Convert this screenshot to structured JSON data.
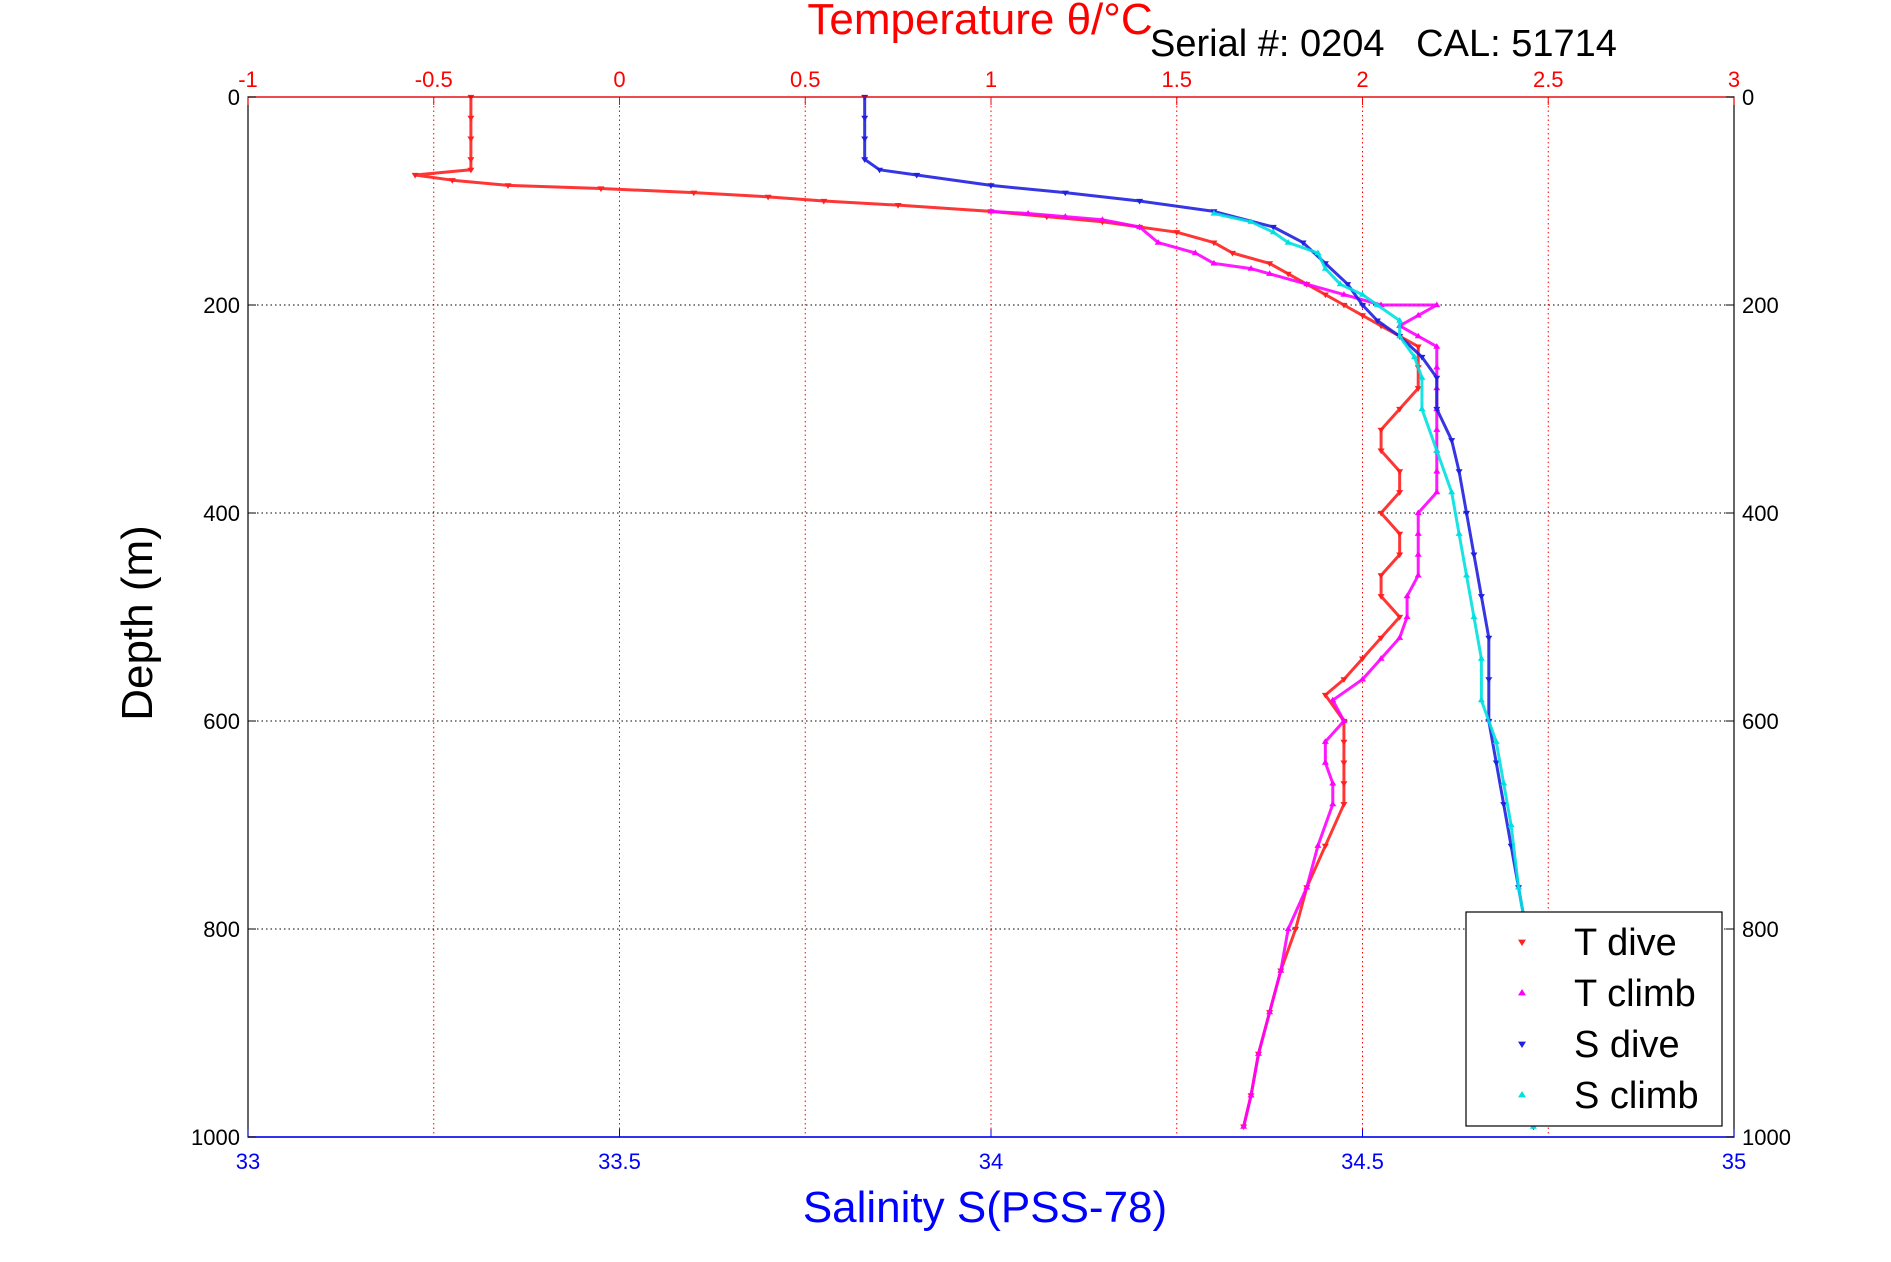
{
  "chart_data": {
    "type": "scatter",
    "title": "Temperature θ/°C",
    "annotation": "Serial #: 0204   CAL: 51714",
    "ylabel": "Depth (m)",
    "x_bottom_label": "Salinity S(PSS-78)",
    "x_top_label": "Temperature θ/°C",
    "ylim": [
      0,
      1000
    ],
    "y_reversed": true,
    "x_bottom_lim": [
      33,
      35
    ],
    "x_top_lim": [
      -1,
      3
    ],
    "x_bottom_ticks": [
      "33",
      "33.5",
      "34",
      "34.5",
      "35"
    ],
    "x_top_ticks": [
      "-1",
      "-0.5",
      "0",
      "0.5",
      "1",
      "1.5",
      "2",
      "2.5",
      "3"
    ],
    "y_ticks": [
      "0",
      "200",
      "400",
      "600",
      "800",
      "1000"
    ],
    "grid": true,
    "legend_position": "bottom-right",
    "colors": {
      "temperature_axis": "#ff0000",
      "salinity_axis": "#0000ff",
      "text": "#000000",
      "grid": "#000000"
    },
    "series": [
      {
        "name": "T dive",
        "axis": "top",
        "marker": "down-triangle",
        "color": "#ff2020",
        "points": [
          [
            -0.4,
            0
          ],
          [
            -0.4,
            20
          ],
          [
            -0.4,
            40
          ],
          [
            -0.4,
            60
          ],
          [
            -0.4,
            70
          ],
          [
            -0.55,
            75
          ],
          [
            -0.45,
            80
          ],
          [
            -0.3,
            85
          ],
          [
            -0.05,
            88
          ],
          [
            0.2,
            92
          ],
          [
            0.4,
            96
          ],
          [
            0.55,
            100
          ],
          [
            0.75,
            104
          ],
          [
            1.0,
            110
          ],
          [
            1.15,
            115
          ],
          [
            1.3,
            120
          ],
          [
            1.4,
            125
          ],
          [
            1.5,
            130
          ],
          [
            1.6,
            140
          ],
          [
            1.65,
            150
          ],
          [
            1.75,
            160
          ],
          [
            1.8,
            170
          ],
          [
            1.85,
            180
          ],
          [
            1.9,
            190
          ],
          [
            1.95,
            200
          ],
          [
            2.0,
            210
          ],
          [
            2.05,
            220
          ],
          [
            2.1,
            230
          ],
          [
            2.15,
            240
          ],
          [
            2.15,
            260
          ],
          [
            2.15,
            280
          ],
          [
            2.1,
            300
          ],
          [
            2.05,
            320
          ],
          [
            2.05,
            340
          ],
          [
            2.1,
            360
          ],
          [
            2.1,
            380
          ],
          [
            2.05,
            400
          ],
          [
            2.1,
            420
          ],
          [
            2.1,
            440
          ],
          [
            2.05,
            460
          ],
          [
            2.05,
            480
          ],
          [
            2.1,
            500
          ],
          [
            2.05,
            520
          ],
          [
            2.0,
            540
          ],
          [
            1.95,
            560
          ],
          [
            1.9,
            575
          ],
          [
            1.95,
            600
          ],
          [
            1.95,
            620
          ],
          [
            1.95,
            640
          ],
          [
            1.95,
            660
          ],
          [
            1.95,
            680
          ],
          [
            1.9,
            720
          ],
          [
            1.85,
            760
          ],
          [
            1.82,
            800
          ],
          [
            1.78,
            840
          ],
          [
            1.75,
            880
          ],
          [
            1.72,
            920
          ],
          [
            1.7,
            960
          ],
          [
            1.68,
            990
          ]
        ]
      },
      {
        "name": "T climb",
        "axis": "top",
        "marker": "up-triangle",
        "color": "#ff00ff",
        "points": [
          [
            1.0,
            110
          ],
          [
            1.1,
            112
          ],
          [
            1.2,
            115
          ],
          [
            1.3,
            118
          ],
          [
            1.4,
            125
          ],
          [
            1.45,
            140
          ],
          [
            1.55,
            150
          ],
          [
            1.6,
            160
          ],
          [
            1.7,
            165
          ],
          [
            1.75,
            170
          ],
          [
            1.85,
            180
          ],
          [
            1.95,
            190
          ],
          [
            2.05,
            200
          ],
          [
            2.2,
            200
          ],
          [
            2.15,
            210
          ],
          [
            2.1,
            220
          ],
          [
            2.15,
            230
          ],
          [
            2.2,
            240
          ],
          [
            2.2,
            260
          ],
          [
            2.2,
            280
          ],
          [
            2.2,
            300
          ],
          [
            2.2,
            320
          ],
          [
            2.2,
            340
          ],
          [
            2.2,
            360
          ],
          [
            2.2,
            380
          ],
          [
            2.15,
            400
          ],
          [
            2.15,
            420
          ],
          [
            2.15,
            440
          ],
          [
            2.15,
            460
          ],
          [
            2.12,
            480
          ],
          [
            2.12,
            500
          ],
          [
            2.1,
            520
          ],
          [
            2.05,
            540
          ],
          [
            2.0,
            560
          ],
          [
            1.92,
            580
          ],
          [
            1.95,
            600
          ],
          [
            1.9,
            620
          ],
          [
            1.9,
            640
          ],
          [
            1.92,
            660
          ],
          [
            1.92,
            680
          ],
          [
            1.88,
            720
          ],
          [
            1.85,
            760
          ],
          [
            1.8,
            800
          ],
          [
            1.78,
            840
          ],
          [
            1.75,
            880
          ],
          [
            1.72,
            920
          ],
          [
            1.7,
            960
          ],
          [
            1.68,
            990
          ]
        ]
      },
      {
        "name": "S dive",
        "axis": "bottom",
        "marker": "down-triangle",
        "color": "#2020e0",
        "points": [
          [
            33.83,
            0
          ],
          [
            33.83,
            20
          ],
          [
            33.83,
            40
          ],
          [
            33.83,
            60
          ],
          [
            33.85,
            70
          ],
          [
            33.9,
            75
          ],
          [
            34.0,
            85
          ],
          [
            34.1,
            92
          ],
          [
            34.2,
            100
          ],
          [
            34.3,
            110
          ],
          [
            34.38,
            125
          ],
          [
            34.42,
            140
          ],
          [
            34.45,
            160
          ],
          [
            34.48,
            180
          ],
          [
            34.5,
            200
          ],
          [
            34.52,
            215
          ],
          [
            34.55,
            230
          ],
          [
            34.58,
            250
          ],
          [
            34.6,
            270
          ],
          [
            34.6,
            300
          ],
          [
            34.62,
            330
          ],
          [
            34.63,
            360
          ],
          [
            34.64,
            400
          ],
          [
            34.65,
            440
          ],
          [
            34.66,
            480
          ],
          [
            34.67,
            520
          ],
          [
            34.67,
            560
          ],
          [
            34.67,
            600
          ],
          [
            34.68,
            640
          ],
          [
            34.69,
            680
          ],
          [
            34.7,
            720
          ],
          [
            34.71,
            760
          ],
          [
            34.72,
            800
          ],
          [
            34.72,
            860
          ],
          [
            34.72,
            920
          ],
          [
            34.73,
            990
          ]
        ]
      },
      {
        "name": "S climb",
        "axis": "bottom",
        "marker": "up-triangle",
        "color": "#00e0e0",
        "points": [
          [
            34.3,
            112
          ],
          [
            34.35,
            120
          ],
          [
            34.38,
            130
          ],
          [
            34.4,
            140
          ],
          [
            34.44,
            150
          ],
          [
            34.45,
            165
          ],
          [
            34.47,
            180
          ],
          [
            34.5,
            190
          ],
          [
            34.52,
            200
          ],
          [
            34.55,
            215
          ],
          [
            34.55,
            230
          ],
          [
            34.57,
            250
          ],
          [
            34.58,
            270
          ],
          [
            34.58,
            300
          ],
          [
            34.6,
            340
          ],
          [
            34.62,
            380
          ],
          [
            34.63,
            420
          ],
          [
            34.64,
            460
          ],
          [
            34.65,
            500
          ],
          [
            34.66,
            540
          ],
          [
            34.66,
            580
          ],
          [
            34.68,
            620
          ],
          [
            34.69,
            660
          ],
          [
            34.7,
            700
          ],
          [
            34.71,
            760
          ],
          [
            34.72,
            800
          ],
          [
            34.72,
            860
          ],
          [
            34.72,
            920
          ],
          [
            34.73,
            990
          ]
        ]
      }
    ]
  }
}
